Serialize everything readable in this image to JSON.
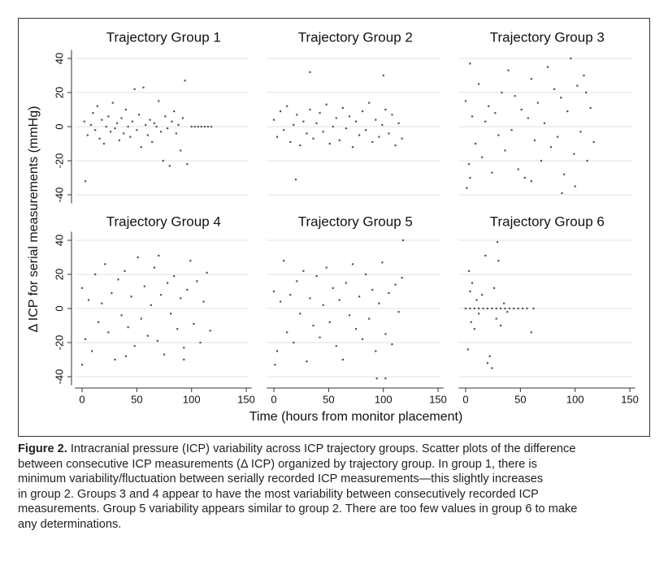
{
  "figure": {
    "ylabel": "Δ ICP for serial measurements (mmHg)",
    "xlabel": "Time (hours from monitor placement)",
    "caption": {
      "label": "Figure 2.",
      "lines": [
        " Intracranial pressure (ICP) variability across ICP trajectory groups. Scatter plots of the difference",
        "between consecutive ICP measurements (Δ ICP) organized by trajectory group. In group 1, there is",
        "minimum variability/fluctuation between serially recorded ICP measurements—this slightly increases",
        "in group 2. Groups 3 and 4 appear to have the most variability between consecutively recorded ICP",
        "measurements. Group 5 variability appears similar to group 2. There are too few values in group 6 to make",
        "any determinations."
      ]
    }
  },
  "chart_data": [
    {
      "type": "scatter",
      "title": "Trajectory Group 1",
      "color": "#555555",
      "grid": true,
      "xlim": [
        -5,
        155
      ],
      "ylim": [
        -45,
        45
      ],
      "yticks": [
        -40,
        -20,
        0,
        20,
        40
      ],
      "x": [
        2,
        5,
        8,
        10,
        12,
        14,
        16,
        18,
        20,
        22,
        24,
        26,
        28,
        30,
        32,
        34,
        36,
        38,
        40,
        42,
        44,
        46,
        48,
        50,
        52,
        54,
        56,
        58,
        60,
        62,
        64,
        66,
        68,
        70,
        72,
        74,
        76,
        78,
        80,
        82,
        84,
        86,
        88,
        90,
        92,
        94,
        96,
        3,
        100,
        103,
        106,
        109,
        112,
        115,
        118
      ],
      "y": [
        3,
        -5,
        1,
        8,
        -2,
        12,
        -7,
        4,
        -10,
        0,
        6,
        -3,
        14,
        -1,
        2,
        -8,
        5,
        -4,
        10,
        0,
        -6,
        3,
        22,
        -2,
        7,
        -12,
        23,
        1,
        -5,
        4,
        -9,
        2,
        0,
        15,
        -3,
        -20,
        6,
        -1,
        -23,
        3,
        9,
        -4,
        1,
        -14,
        5,
        27,
        -22,
        -32,
        0,
        0,
        0,
        0,
        0,
        0,
        0
      ]
    },
    {
      "type": "scatter",
      "title": "Trajectory Group 2",
      "color": "#555555",
      "grid": true,
      "xlim": [
        -5,
        155
      ],
      "ylim": [
        -45,
        45
      ],
      "yticks": [
        -40,
        -20,
        0,
        20,
        40
      ],
      "x": [
        0,
        3,
        6,
        9,
        12,
        15,
        18,
        21,
        24,
        27,
        30,
        33,
        36,
        39,
        42,
        45,
        48,
        51,
        54,
        57,
        60,
        63,
        66,
        69,
        72,
        75,
        78,
        81,
        84,
        87,
        90,
        93,
        96,
        99,
        102,
        105,
        108,
        111,
        114,
        117,
        33,
        100,
        20
      ],
      "y": [
        4,
        -6,
        9,
        -2,
        12,
        -9,
        1,
        7,
        -11,
        3,
        -4,
        10,
        -7,
        2,
        8,
        -3,
        13,
        -10,
        0,
        5,
        -8,
        11,
        -1,
        6,
        -12,
        3,
        -5,
        9,
        -2,
        14,
        -9,
        4,
        -6,
        1,
        10,
        -4,
        7,
        -11,
        2,
        -7,
        32,
        30,
        -31
      ]
    },
    {
      "type": "scatter",
      "title": "Trajectory Group 3",
      "color": "#555555",
      "grid": true,
      "xlim": [
        -5,
        155
      ],
      "ylim": [
        -45,
        45
      ],
      "yticks": [
        -40,
        -20,
        0,
        20,
        40
      ],
      "x": [
        0,
        3,
        6,
        9,
        12,
        15,
        18,
        21,
        24,
        27,
        30,
        33,
        36,
        39,
        42,
        45,
        48,
        51,
        54,
        57,
        60,
        63,
        66,
        69,
        72,
        75,
        78,
        81,
        84,
        87,
        90,
        93,
        96,
        99,
        102,
        105,
        108,
        111,
        114,
        117,
        1,
        4,
        60,
        88,
        100,
        4,
        110
      ],
      "y": [
        15,
        -22,
        6,
        -10,
        25,
        -18,
        3,
        12,
        -27,
        8,
        -5,
        20,
        -14,
        33,
        -2,
        18,
        -25,
        10,
        -30,
        5,
        28,
        -8,
        14,
        -20,
        2,
        35,
        -12,
        22,
        -6,
        17,
        -28,
        9,
        40,
        -16,
        24,
        -3,
        30,
        -20,
        11,
        -9,
        -36,
        37,
        -32,
        -39,
        -35,
        -30,
        20
      ]
    },
    {
      "type": "scatter",
      "title": "Trajectory Group 4",
      "color": "#555555",
      "grid": true,
      "xlim": [
        -5,
        155
      ],
      "ylim": [
        -45,
        45
      ],
      "yticks": [
        -40,
        -20,
        0,
        20,
        40
      ],
      "xticks": [
        0,
        50,
        100,
        150
      ],
      "x": [
        0,
        3,
        6,
        9,
        12,
        15,
        18,
        21,
        24,
        27,
        30,
        33,
        36,
        39,
        42,
        45,
        48,
        51,
        54,
        57,
        60,
        63,
        66,
        69,
        72,
        75,
        78,
        81,
        84,
        87,
        90,
        93,
        96,
        99,
        102,
        105,
        108,
        111,
        114,
        117,
        0,
        40,
        93,
        70
      ],
      "y": [
        12,
        -18,
        5,
        -25,
        20,
        -8,
        3,
        26,
        -14,
        9,
        -30,
        17,
        -4,
        22,
        -11,
        7,
        -22,
        30,
        -6,
        13,
        -16,
        2,
        24,
        -19,
        8,
        -27,
        15,
        -3,
        19,
        -12,
        6,
        -23,
        11,
        28,
        -9,
        16,
        -20,
        4,
        21,
        -13,
        -33,
        -28,
        -30,
        31
      ]
    },
    {
      "type": "scatter",
      "title": "Trajectory Group 5",
      "color": "#555555",
      "grid": true,
      "xlim": [
        -5,
        155
      ],
      "ylim": [
        -45,
        45
      ],
      "yticks": [
        -40,
        -20,
        0,
        20,
        40
      ],
      "xticks": [
        0,
        50,
        100,
        150
      ],
      "x": [
        0,
        3,
        6,
        9,
        12,
        15,
        18,
        21,
        24,
        27,
        30,
        33,
        36,
        39,
        42,
        45,
        48,
        51,
        54,
        57,
        60,
        63,
        66,
        69,
        72,
        75,
        78,
        81,
        84,
        87,
        90,
        93,
        96,
        99,
        102,
        105,
        108,
        111,
        114,
        117,
        94,
        102,
        118,
        1
      ],
      "y": [
        10,
        -25,
        4,
        28,
        -14,
        8,
        -20,
        16,
        -3,
        22,
        -31,
        6,
        -10,
        19,
        -17,
        2,
        24,
        -8,
        12,
        -22,
        5,
        -30,
        15,
        -4,
        26,
        -12,
        7,
        -18,
        20,
        -6,
        11,
        -25,
        3,
        27,
        -15,
        9,
        -21,
        14,
        -2,
        18,
        -41,
        -41,
        40,
        -33
      ]
    },
    {
      "type": "scatter",
      "title": "Trajectory Group 6",
      "color": "#555555",
      "grid": true,
      "xlim": [
        -5,
        155
      ],
      "ylim": [
        -45,
        45
      ],
      "yticks": [
        -40,
        -20,
        0,
        20,
        40
      ],
      "xticks": [
        0,
        50,
        100,
        150
      ],
      "x": [
        2,
        3,
        4,
        5,
        6,
        8,
        10,
        12,
        15,
        18,
        20,
        22,
        24,
        26,
        28,
        29,
        30,
        32,
        35,
        38,
        60,
        0,
        4,
        8,
        12,
        16,
        20,
        24,
        28,
        32,
        36,
        40,
        44,
        48,
        52,
        56,
        62
      ],
      "y": [
        -24,
        22,
        10,
        -8,
        15,
        -12,
        5,
        -3,
        8,
        31,
        -32,
        -28,
        -35,
        12,
        -6,
        39,
        28,
        -10,
        3,
        -2,
        -14,
        0,
        0,
        0,
        0,
        0,
        0,
        0,
        0,
        0,
        0,
        0,
        0,
        0,
        0,
        0,
        0
      ]
    }
  ]
}
